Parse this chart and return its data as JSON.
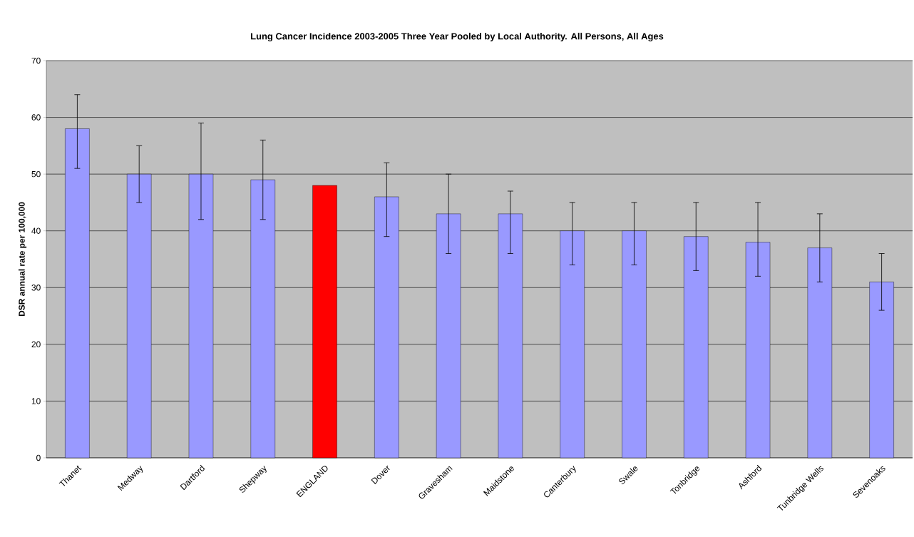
{
  "chart_data": {
    "type": "bar",
    "title": "Lung Cancer Incidence 2003-2005 Three Year Pooled by Local Authority.  All Persons, All Ages",
    "ylabel": "DSR annual rate per 100,000",
    "categories": [
      "Thanet",
      "Medway",
      "Dartford",
      "Shepway",
      "ENGLAND",
      "Dover",
      "Gravesham",
      "Maidstone",
      "Canterbury",
      "Swale",
      "Tonbridge",
      "Ashford",
      "Tunbridge Wells",
      "Sevenoaks"
    ],
    "values": [
      58,
      50,
      50,
      49,
      48,
      46,
      43,
      43,
      40,
      40,
      39,
      38,
      37,
      31
    ],
    "colors": [
      "#9999ff",
      "#9999ff",
      "#9999ff",
      "#9999ff",
      "#ff0000",
      "#9999ff",
      "#9999ff",
      "#9999ff",
      "#9999ff",
      "#9999ff",
      "#9999ff",
      "#9999ff",
      "#9999ff",
      "#9999ff"
    ],
    "errors": [
      [
        51,
        64
      ],
      [
        45,
        55
      ],
      [
        42,
        59
      ],
      [
        42,
        56
      ],
      null,
      [
        39,
        52
      ],
      [
        36,
        50
      ],
      [
        36,
        47
      ],
      [
        34,
        45
      ],
      [
        34,
        45
      ],
      [
        33,
        45
      ],
      [
        32,
        45
      ],
      [
        31,
        43
      ],
      [
        26,
        36
      ]
    ],
    "ylim": [
      0,
      70
    ],
    "yticks": [
      0,
      10,
      20,
      30,
      40,
      50,
      60,
      70
    ],
    "grid": "y"
  }
}
